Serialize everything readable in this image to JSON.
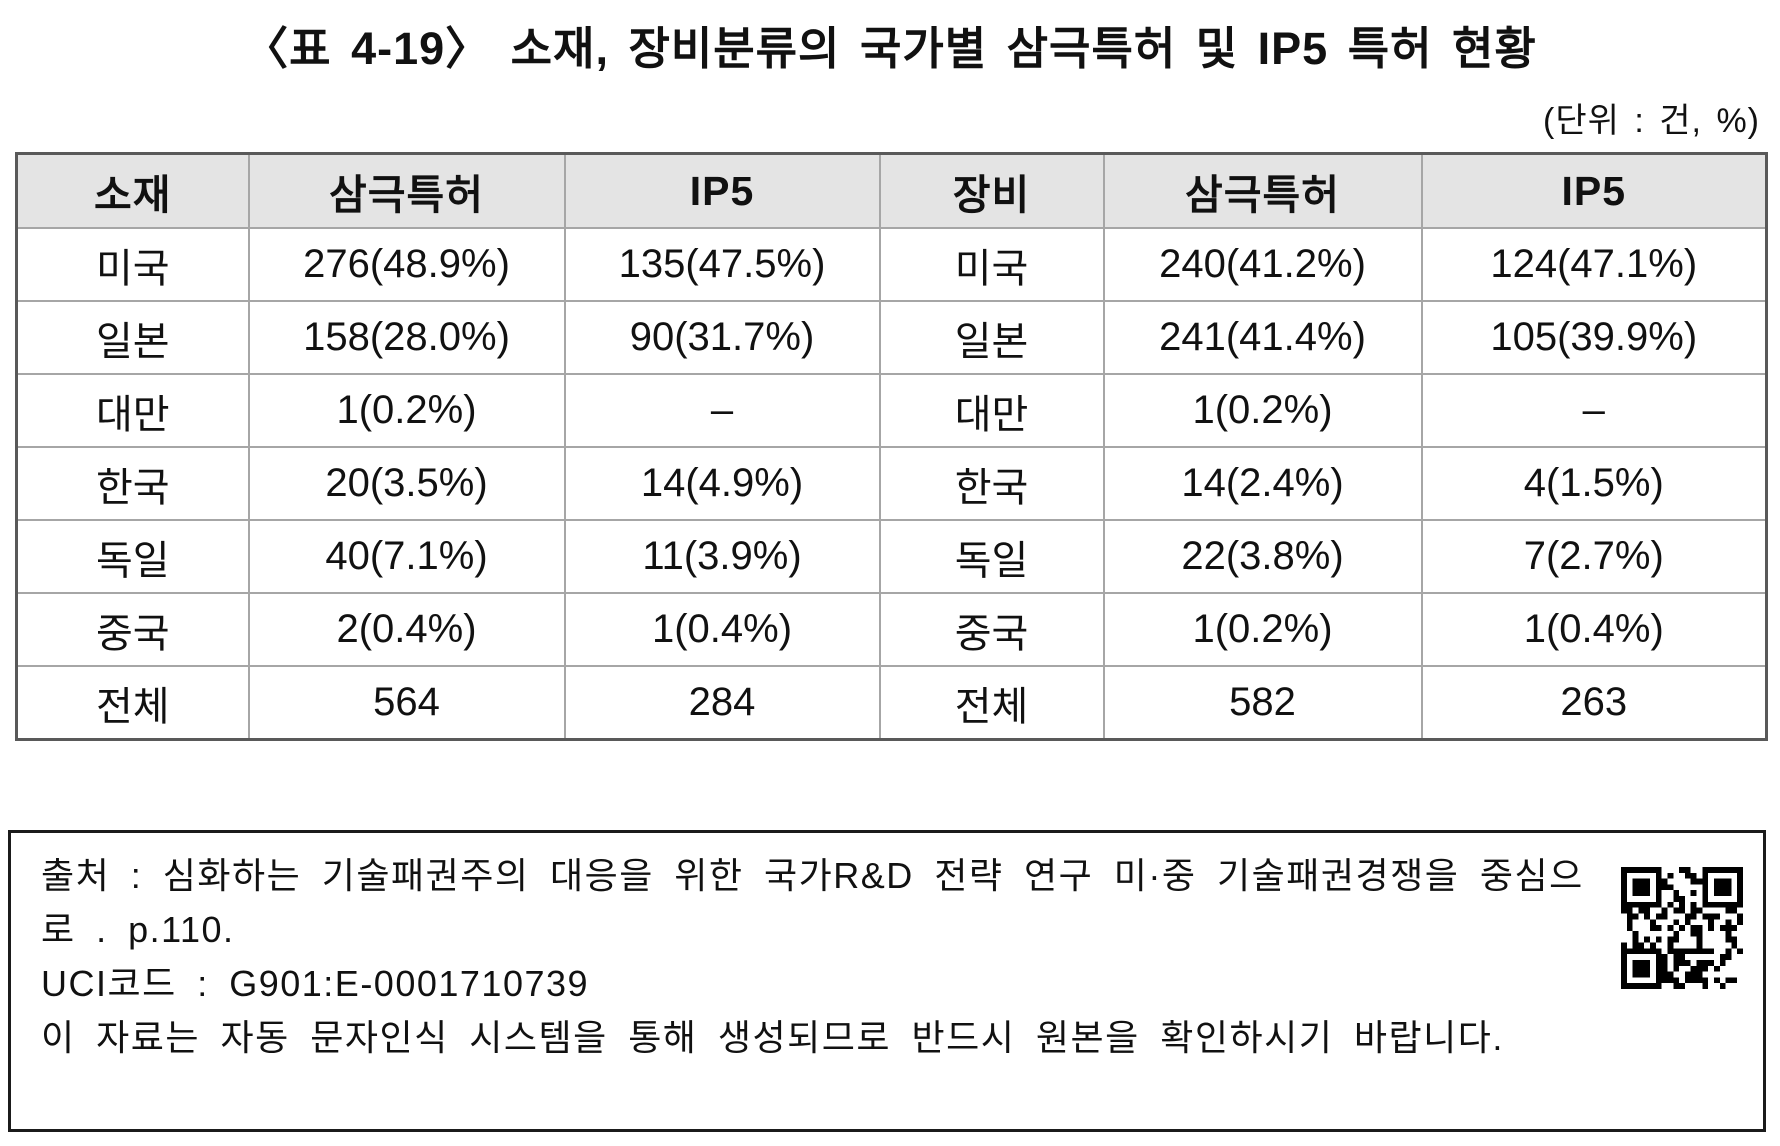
{
  "title": "〈표 4-19〉 소재, 장비분류의 국가별 삼극특허 및 IP5 특허 현황",
  "unit_note": "(단위 : 건, %)",
  "table": {
    "headers": [
      "소재",
      "삼극특허",
      "IP5",
      "장비",
      "삼극특허",
      "IP5"
    ],
    "rows": [
      [
        "미국",
        "276(48.9%)",
        "135(47.5%)",
        "미국",
        "240(41.2%)",
        "124(47.1%)"
      ],
      [
        "일본",
        "158(28.0%)",
        "90(31.7%)",
        "일본",
        "241(41.4%)",
        "105(39.9%)"
      ],
      [
        "대만",
        "1(0.2%)",
        "–",
        "대만",
        "1(0.2%)",
        "–"
      ],
      [
        "한국",
        "20(3.5%)",
        "14(4.9%)",
        "한국",
        "14(2.4%)",
        "4(1.5%)"
      ],
      [
        "독일",
        "40(7.1%)",
        "11(3.9%)",
        "독일",
        "22(3.8%)",
        "7(2.7%)"
      ],
      [
        "중국",
        "2(0.4%)",
        "1(0.4%)",
        "중국",
        "1(0.2%)",
        "1(0.4%)"
      ],
      [
        "전체",
        "564",
        "284",
        "전체",
        "582",
        "263"
      ]
    ]
  },
  "footer": {
    "source_line": "출처 : 심화하는 기술패권주의 대응을 위한 국가R&D 전략 연구 미·중 기술패권경쟁을 중심으로 . p.110.",
    "uci_line": "UCI코드 : G901:E-0001710739",
    "notice_line": "이 자료는 자동 문자인식 시스템을 통해 생성되므로 반드시 원본을 확인하시기 바랍니다.",
    "qr_icon": "qr-code"
  },
  "colors": {
    "text": "#111111",
    "header_bg": "#e4e4e4",
    "border_inner": "#a6a6a6",
    "border_outer": "#595959"
  }
}
